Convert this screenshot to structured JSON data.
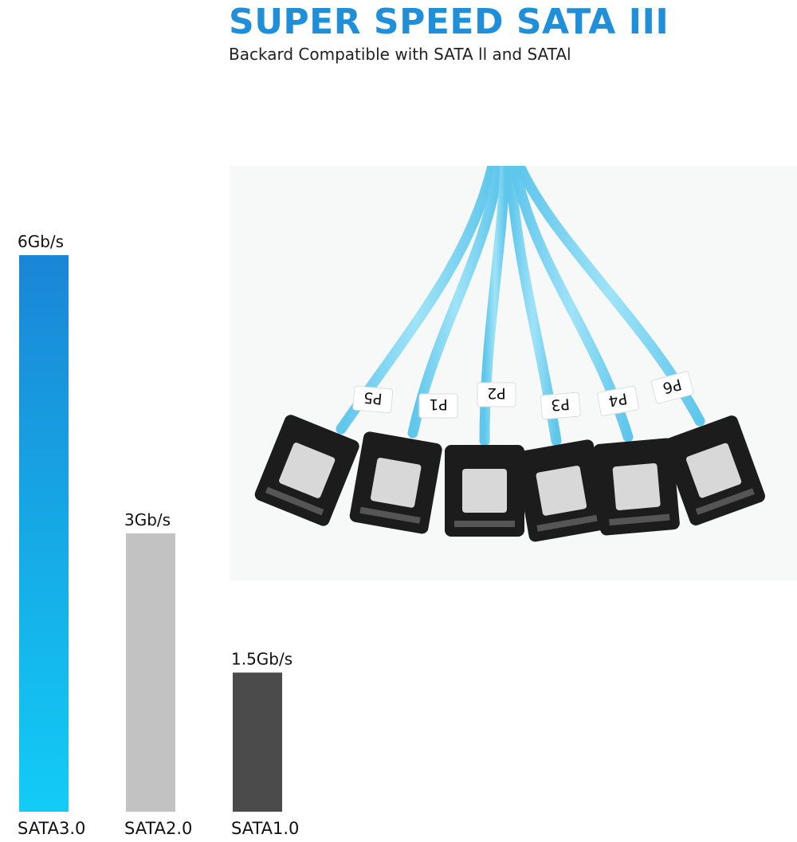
{
  "header": {
    "title": "SUPER SPEED SATA III",
    "subtitle": "Backard Compatible with SATA ll and SATAl"
  },
  "product_photo": {
    "port_labels": [
      "P5",
      "P1",
      "P2",
      "P3",
      "P4",
      "P6"
    ],
    "cable_color": "#7dd3f0",
    "connector_color": "#1c1c1c",
    "latch_color": "#d8d8d8"
  },
  "colors": {
    "title": "#1e8fd8",
    "sata3_top": "#1a86d6",
    "sata3_bottom": "#12ccf6",
    "sata2": "#c2c2c2",
    "sata1": "#4b4b4b"
  },
  "chart_data": {
    "type": "bar",
    "title": "",
    "xlabel": "",
    "ylabel": "",
    "unit": "Gb/s",
    "categories": [
      "SATA3.0",
      "SATA2.0",
      "SATA1.0"
    ],
    "values": [
      6,
      3,
      1.5
    ],
    "value_labels": [
      "6Gb/s",
      "3Gb/s",
      "1.5Gb/s"
    ],
    "ylim": [
      0,
      6
    ],
    "grid": false,
    "legend": "none"
  }
}
